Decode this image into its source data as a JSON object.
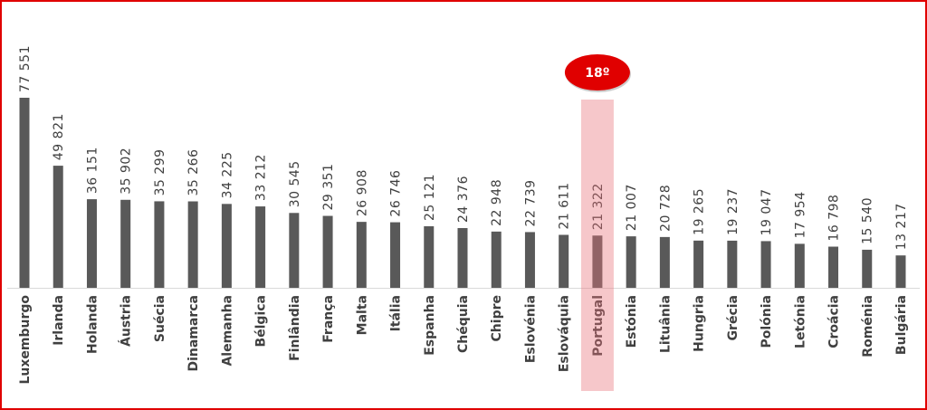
{
  "chart_data": {
    "type": "bar",
    "categories": [
      "Luxemburgo",
      "Irlanda",
      "Holanda",
      "Áustria",
      "Suécia",
      "Dinamarca",
      "Alemanha",
      "Bélgica",
      "Finlândia",
      "França",
      "Malta",
      "Itália",
      "Espanha",
      "Chéquia",
      "Chipre",
      "Eslovénia",
      "Eslováquia",
      "Portugal",
      "Estónia",
      "Lituânia",
      "Hungria",
      "Grécia",
      "Polónia",
      "Letónia",
      "Croácia",
      "Roménia",
      "Bulgária"
    ],
    "values": [
      77551,
      49821,
      36151,
      35902,
      35299,
      35266,
      34225,
      33212,
      30545,
      29351,
      26908,
      26746,
      25121,
      24376,
      22948,
      22739,
      21611,
      21322,
      21007,
      20728,
      19265,
      19237,
      19047,
      17954,
      16798,
      15540,
      13217
    ],
    "value_labels": [
      "77 551",
      "49 821",
      "36 151",
      "35 902",
      "35 299",
      "35 266",
      "34 225",
      "33 212",
      "30 545",
      "29 351",
      "26 908",
      "26 746",
      "25 121",
      "24 376",
      "22 948",
      "22 739",
      "21 611",
      "21 322",
      "21 007",
      "20 728",
      "19 265",
      "19 237",
      "19 047",
      "17 954",
      "16 798",
      "15 540",
      "13 217"
    ],
    "color": "#595959",
    "highlight_category": "Portugal",
    "highlight_color": "#e8737a",
    "annotation": "18º",
    "annotation_color": "#e00000"
  }
}
